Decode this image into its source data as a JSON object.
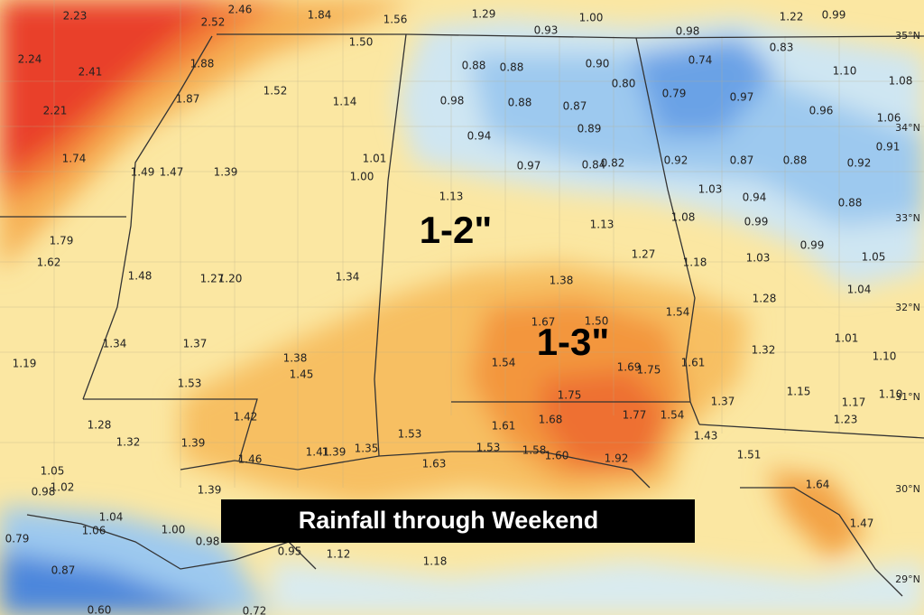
{
  "caption": "Rainfall through Weekend",
  "region_labels": [
    "1-2\"",
    "1-3\""
  ],
  "latitude_labels": [
    "35°N",
    "34°N",
    "33°N",
    "32°N",
    "31°N",
    "30°N",
    "29°N"
  ],
  "rainfall_labels": [
    "2.23",
    "2.52",
    "2.46",
    "1.84",
    "1.56",
    "1.29",
    "1.00",
    "0.93",
    "1.22",
    "0.99",
    "0.98",
    "0.83",
    "2.24",
    "2.41",
    "1.88",
    "1.50",
    "0.88",
    "0.88",
    "0.90",
    "0.80",
    "0.74",
    "1.10",
    "1.08",
    "1.87",
    "1.52",
    "1.14",
    "0.98",
    "0.88",
    "0.87",
    "0.79",
    "0.97",
    "0.96",
    "1.06",
    "2.21",
    "0.94",
    "0.89",
    "0.91",
    "1.74",
    "1.49",
    "1.47",
    "1.39",
    "1.01",
    "1.00",
    "0.97",
    "0.84",
    "0.82",
    "0.92",
    "0.87",
    "0.88",
    "0.92",
    "1.03",
    "0.94",
    "1.13",
    "0.88",
    "1.08",
    "0.99",
    "1.79",
    "1.13",
    "1.27",
    "0.99",
    "1.05",
    "1.62",
    "1.18",
    "1.03",
    "1.48",
    "1.27",
    "1.20",
    "1.34",
    "1.38",
    "1.04",
    "1.28",
    "1.67",
    "1.50",
    "1.54",
    "1.34",
    "1.37",
    "1.01",
    "1.32",
    "1.10",
    "1.38",
    "1.19",
    "1.54",
    "1.61",
    "1.69",
    "1.75",
    "1.45",
    "1.53",
    "1.15",
    "1.75",
    "1.37",
    "1.17",
    "1.10",
    "1.42",
    "1.68",
    "1.77",
    "1.54",
    "1.23",
    "1.28",
    "1.61",
    "1.53",
    "1.43",
    "1.32",
    "1.39",
    "1.51",
    "1.41",
    "1.39",
    "1.35",
    "1.53",
    "1.58",
    "1.60",
    "1.92",
    "1.46",
    "1.63",
    "1.05",
    "1.02",
    "0.98",
    "1.64",
    "1.39",
    "1.04",
    "1.06",
    "1.47",
    "1.00",
    "0.79",
    "0.98",
    "0.95",
    "1.12",
    "1.18",
    "0.87",
    "0.72",
    "0.60"
  ]
}
